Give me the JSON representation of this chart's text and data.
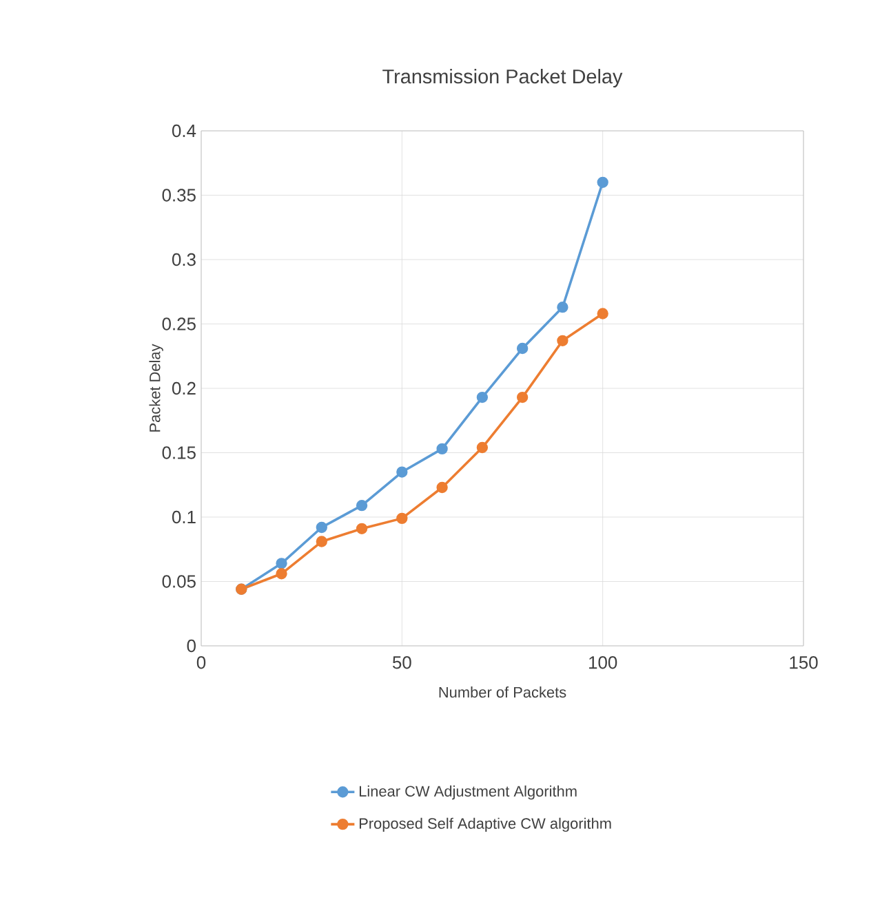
{
  "chart_data": {
    "type": "line",
    "title": "Transmission Packet Delay",
    "xlabel": "Number of Packets",
    "ylabel": "Packet Delay",
    "x": [
      10,
      20,
      30,
      40,
      50,
      60,
      70,
      80,
      90,
      100
    ],
    "series": [
      {
        "name": "Linear CW Adjustment Algorithm",
        "color": "#5b9bd5",
        "values": [
          0.044,
          0.064,
          0.092,
          0.109,
          0.135,
          0.153,
          0.193,
          0.231,
          0.263,
          0.36
        ]
      },
      {
        "name": "Proposed Self Adaptive CW algorithm",
        "color": "#ed7d31",
        "values": [
          0.044,
          0.056,
          0.081,
          0.091,
          0.099,
          0.123,
          0.154,
          0.193,
          0.237,
          0.258
        ]
      }
    ],
    "xlim": [
      0,
      150
    ],
    "xticks": [
      0,
      50,
      100,
      150
    ],
    "ylim": [
      0,
      0.4
    ],
    "yticks": [
      0,
      0.05,
      0.1,
      0.15,
      0.2,
      0.25,
      0.3,
      0.35,
      0.4
    ],
    "grid": true,
    "legend": "bottom",
    "marker": "circle",
    "line_style": "solid"
  }
}
